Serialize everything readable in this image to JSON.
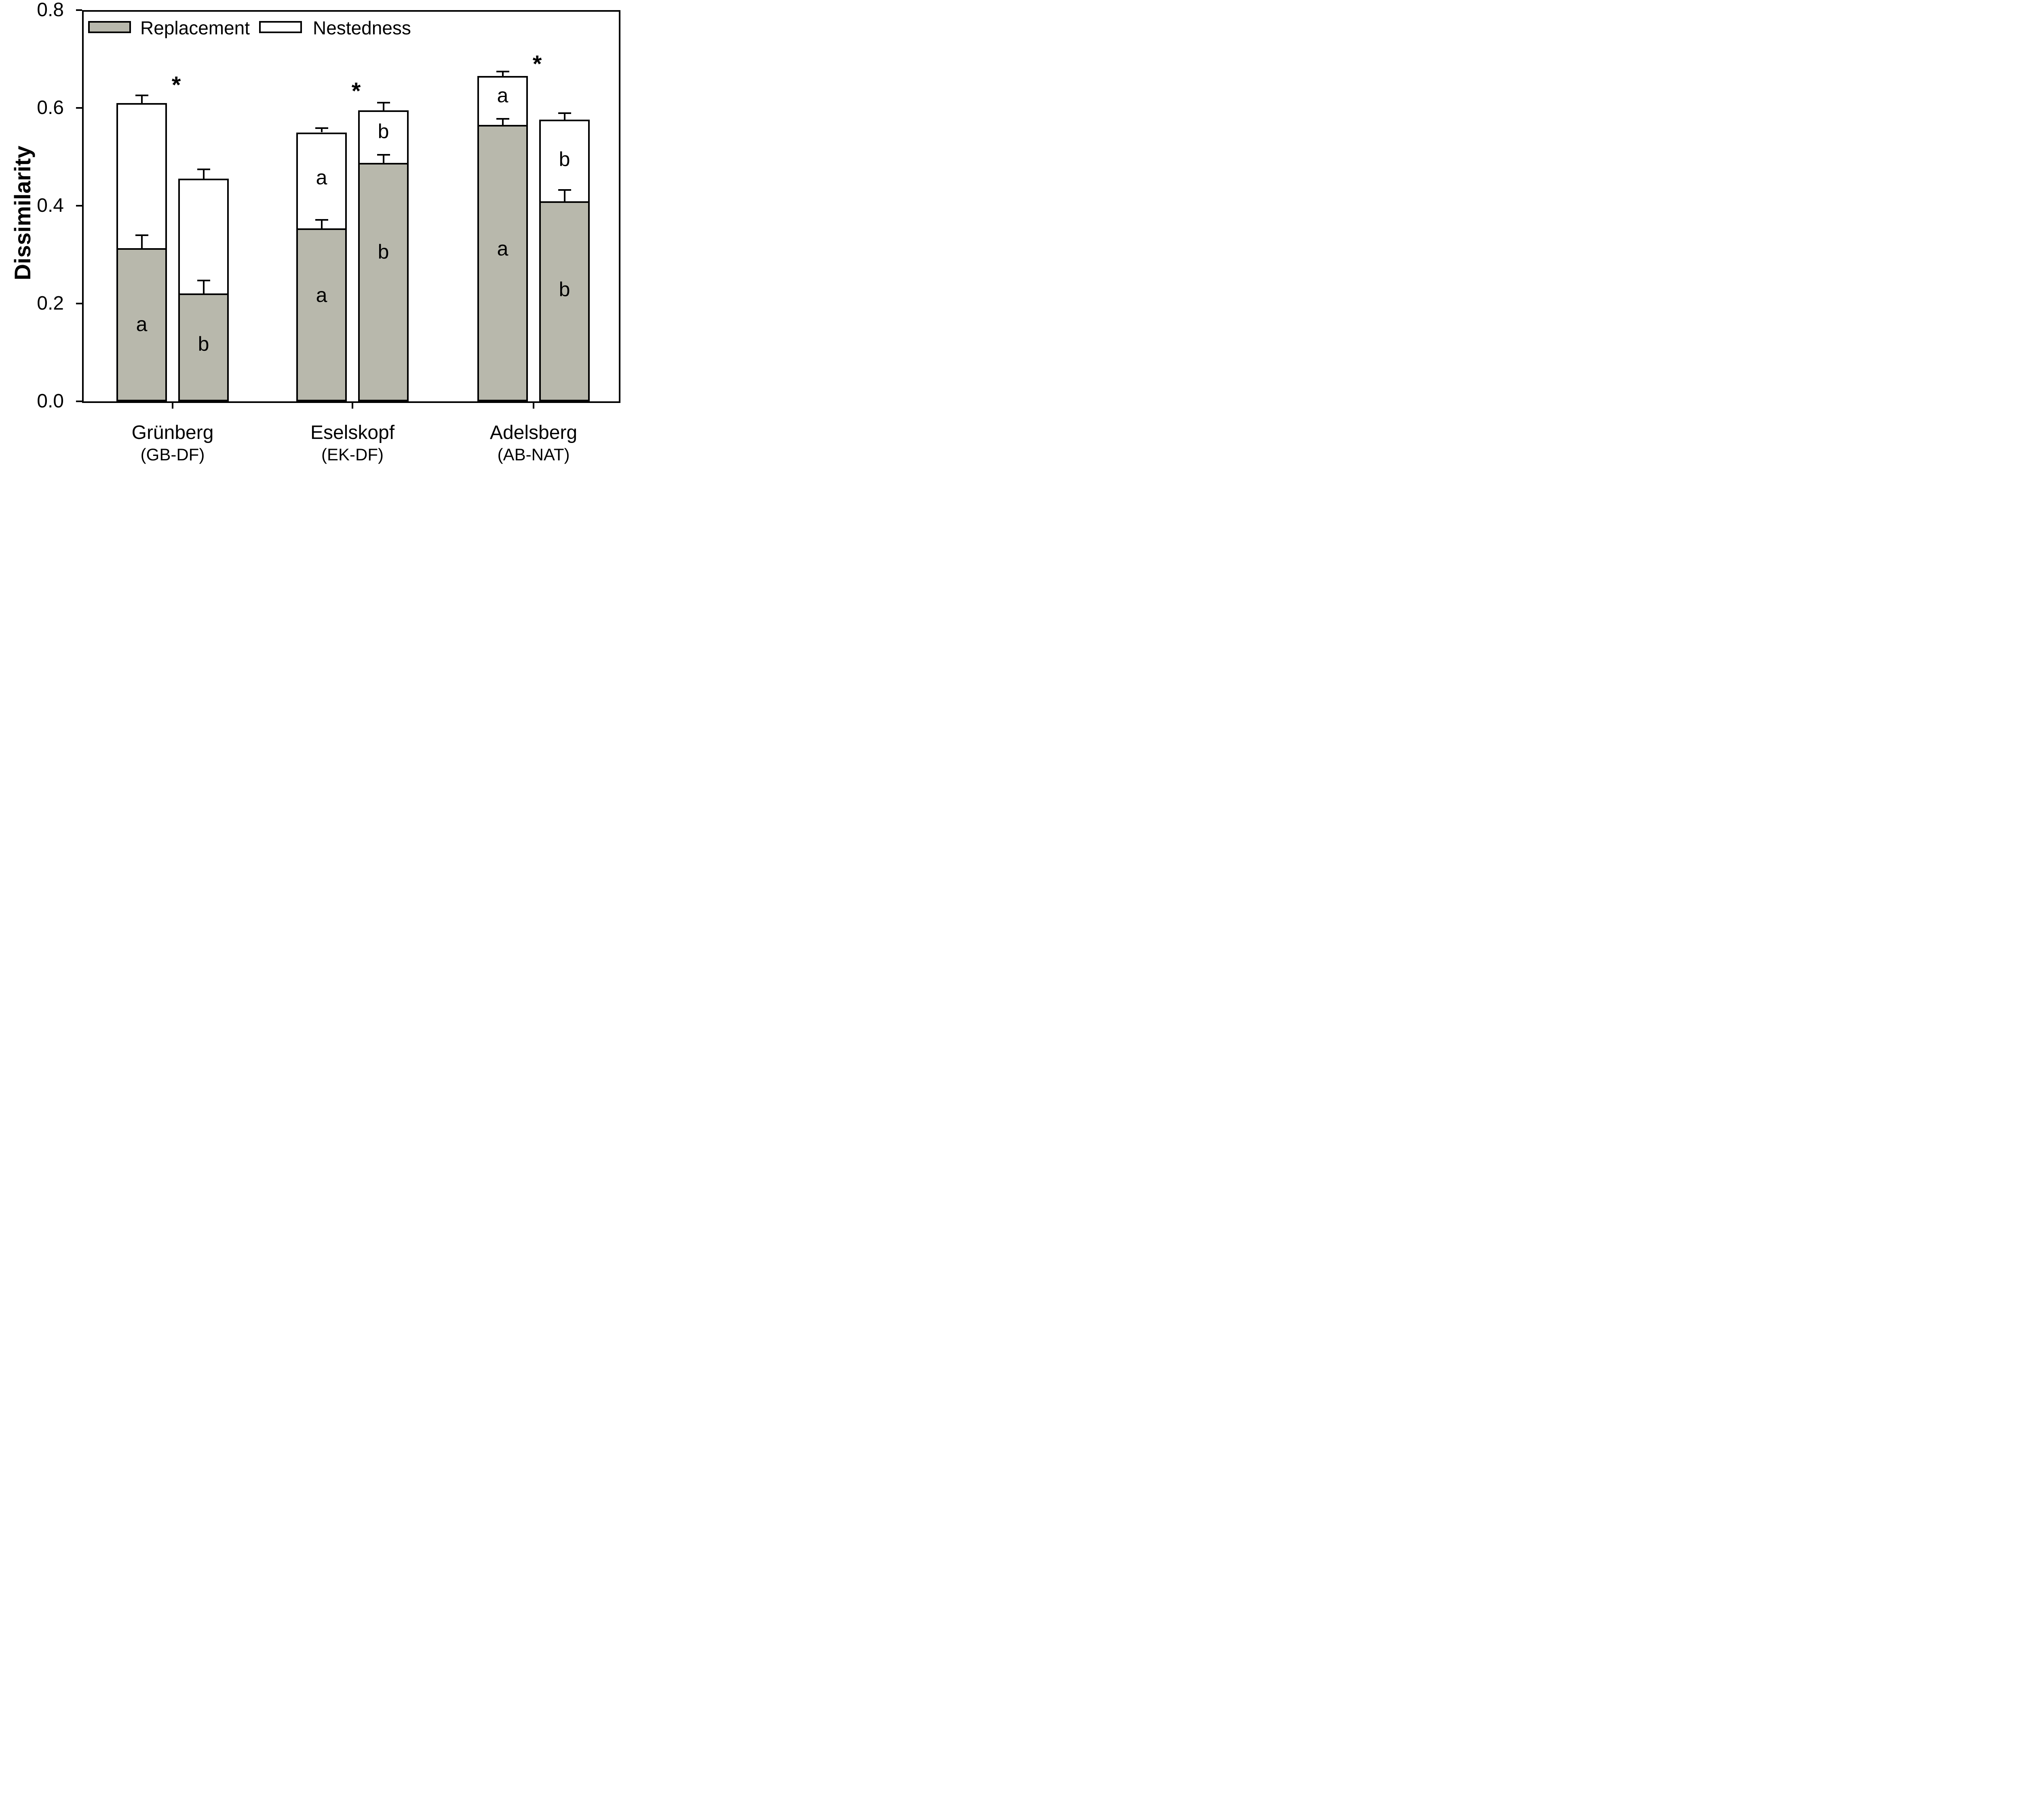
{
  "figure": {
    "y_axis_title": "Dissimilarity",
    "legend": {
      "replacement_label": "Replacement",
      "nestedness_label": "Nestedness"
    }
  },
  "chart_data": {
    "type": "bar",
    "stacked": true,
    "title": "",
    "xlabel": "",
    "ylabel": "Dissimilarity",
    "ylim": [
      0,
      0.8
    ],
    "ytick_labels": [
      "0.0",
      "0.2",
      "0.4",
      "0.6",
      "0.8"
    ],
    "ytick_values": [
      0.0,
      0.2,
      0.4,
      0.6,
      0.8
    ],
    "grid": false,
    "legend_position": "top-left-inside",
    "frame": "full-box",
    "series_labels": [
      "Replacement",
      "Nestedness"
    ],
    "colors": {
      "replacement_fill": "#b8b8ac",
      "nestedness_fill": "#ffffff",
      "outline": "#000000",
      "text": "#000000"
    },
    "categories": [
      {
        "name": "Grünberg",
        "code": "(GB-DF)"
      },
      {
        "name": "Eselskopf",
        "code": "(EK-DF)"
      },
      {
        "name": "Adelsberg",
        "code": "(AB-NAT)"
      }
    ],
    "groups": [
      {
        "category": "Grünberg",
        "asterisk": true,
        "asterisk_y": 0.652,
        "bars": [
          {
            "id": "a",
            "replacement": 0.313,
            "nestedness": 0.297,
            "total": 0.61,
            "se_replacement": 0.027,
            "se_total": 0.016,
            "letter_replacement": "a",
            "letter_replacement_y": 0.158,
            "letter_nestedness": null,
            "letter_nestedness_y": null
          },
          {
            "id": "b",
            "replacement": 0.221,
            "nestedness": 0.234,
            "total": 0.455,
            "se_replacement": 0.026,
            "se_total": 0.019,
            "letter_replacement": "b",
            "letter_replacement_y": 0.117,
            "letter_nestedness": null,
            "letter_nestedness_y": null
          }
        ]
      },
      {
        "category": "Eselskopf",
        "asterisk": true,
        "asterisk_y": 0.64,
        "bars": [
          {
            "id": "a",
            "replacement": 0.354,
            "nestedness": 0.196,
            "total": 0.55,
            "se_replacement": 0.017,
            "se_total": 0.009,
            "letter_replacement": "a",
            "letter_replacement_y": 0.217,
            "letter_nestedness": "a",
            "letter_nestedness_y": 0.458
          },
          {
            "id": "b",
            "replacement": 0.488,
            "nestedness": 0.107,
            "total": 0.595,
            "se_replacement": 0.016,
            "se_total": 0.016,
            "letter_replacement": "b",
            "letter_replacement_y": 0.306,
            "letter_nestedness": "b",
            "letter_nestedness_y": 0.552
          }
        ]
      },
      {
        "category": "Adelsberg",
        "asterisk": true,
        "asterisk_y": 0.695,
        "bars": [
          {
            "id": "a",
            "replacement": 0.565,
            "nestedness": 0.1,
            "total": 0.665,
            "se_replacement": 0.013,
            "se_total": 0.009,
            "letter_replacement": "a",
            "letter_replacement_y": 0.312,
            "letter_nestedness": "a",
            "letter_nestedness_y": 0.626
          },
          {
            "id": "b",
            "replacement": 0.409,
            "nestedness": 0.167,
            "total": 0.576,
            "se_replacement": 0.023,
            "se_total": 0.013,
            "letter_replacement": "b",
            "letter_replacement_y": 0.229,
            "letter_nestedness": "b",
            "letter_nestedness_y": 0.495
          }
        ]
      }
    ]
  }
}
